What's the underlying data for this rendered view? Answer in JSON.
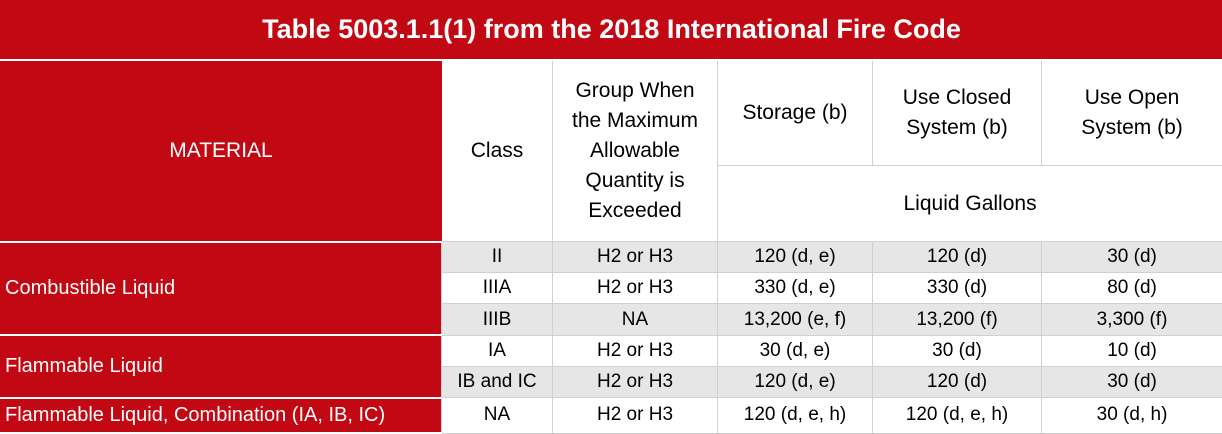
{
  "title": "Table 5003.1.1(1) from the 2018 International Fire Code",
  "headers": {
    "material": "MATERIAL",
    "class": "Class",
    "group": "Group When the Maximum Allowable Quantity is Exceeded",
    "storage": "Storage (b)",
    "use_closed": "Use Closed System (b)",
    "use_open": "Use Open System (b)",
    "units": "Liquid Gallons"
  },
  "groups": [
    {
      "material": "Combustible Liquid",
      "rows": [
        {
          "class": "II",
          "group": "H2 or H3",
          "storage": "120 (d, e)",
          "use_closed": "120 (d)",
          "use_open": "30 (d)"
        },
        {
          "class": "IIIA",
          "group": "H2 or H3",
          "storage": "330 (d, e)",
          "use_closed": "330 (d)",
          "use_open": "80 (d)"
        },
        {
          "class": "IIIB",
          "group": "NA",
          "storage": "13,200 (e, f)",
          "use_closed": "13,200 (f)",
          "use_open": "3,300 (f)"
        }
      ]
    },
    {
      "material": "Flammable Liquid",
      "rows": [
        {
          "class": "IA",
          "group": "H2 or H3",
          "storage": "30 (d, e)",
          "use_closed": "30 (d)",
          "use_open": "10 (d)"
        },
        {
          "class": "IB and IC",
          "group": "H2 or H3",
          "storage": "120 (d, e)",
          "use_closed": "120 (d)",
          "use_open": "30 (d)"
        }
      ]
    },
    {
      "material": "Flammable Liquid, Combination (IA, IB, IC)",
      "rows": [
        {
          "class": "NA",
          "group": "H2 or H3",
          "storage": "120 (d, e, h)",
          "use_closed": "120 (d, e, h)",
          "use_open": "30 (d, h)"
        }
      ]
    }
  ],
  "colors": {
    "header_red": "#c10813",
    "shaded_row": "#e6e6e6",
    "border": "#d0d0d0"
  }
}
